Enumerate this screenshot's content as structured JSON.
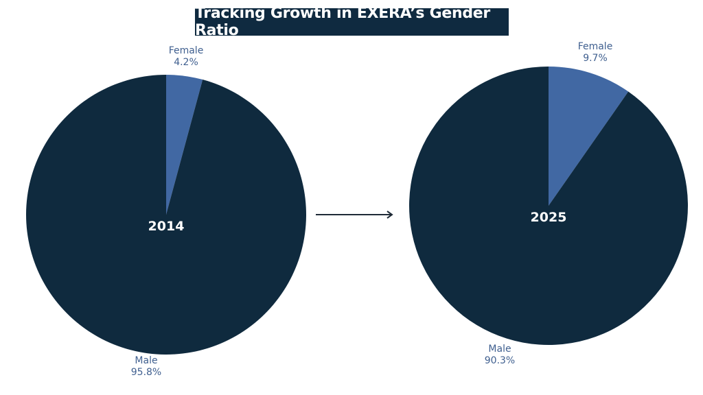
{
  "title": "Tracking Growth in EXERA’s Gender Ratio",
  "colors": {
    "male": "#0f2a3e",
    "female": "#4168a3",
    "label": "#3f5f8f",
    "arrow": "#1e2a36"
  },
  "chart_data": [
    {
      "type": "pie",
      "title": "2014",
      "slices": [
        {
          "label": "Female",
          "value": 4.2,
          "display": "4.2%"
        },
        {
          "label": "Male",
          "value": 95.8,
          "display": "95.8%"
        }
      ],
      "start_angle": "12 o'clock, clockwise"
    },
    {
      "type": "pie",
      "title": "2025",
      "slices": [
        {
          "label": "Female",
          "value": 9.7,
          "display": "9.7%"
        },
        {
          "label": "Male",
          "value": 90.3,
          "display": "90.3%"
        }
      ],
      "start_angle": "12 o'clock, clockwise"
    }
  ],
  "connector": "arrow-right"
}
